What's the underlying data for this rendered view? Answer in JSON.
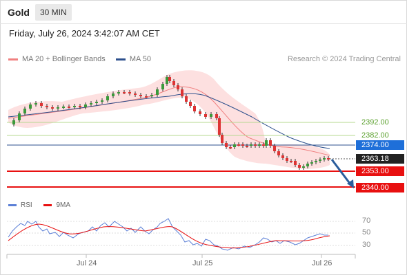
{
  "header": {
    "title": "Gold",
    "interval": "30 MIN"
  },
  "datetime": "Friday, July 26, 2024 3:42:07 AM CET",
  "legend": [
    {
      "label": "MA 20 + Bollinger Bands",
      "color": "#f08080"
    },
    {
      "label": "MA 50",
      "color": "#2c4f8c"
    }
  ],
  "credit": "Research © 2024 Trading Central",
  "levels": {
    "resistance_2": "2392.00",
    "resistance_1": "2382.00",
    "pivot": "2374.00",
    "last": "2363.18",
    "support_1": "2353.00",
    "support_2": "2340.00"
  },
  "colors": {
    "resistance": "#5aa02c",
    "pivot": "#1e6fd9",
    "support": "#e81010",
    "last": "#222222",
    "arrow": "#2a5d9c"
  },
  "rsi": {
    "legend": [
      {
        "label": "RSI",
        "color": "#5b7fd6"
      },
      {
        "label": "9MA",
        "color": "#e81010"
      }
    ],
    "axis": [
      "70",
      "50",
      "30"
    ]
  },
  "x_axis": [
    "Jul 24",
    "Jul 25",
    "Jul 26"
  ]
}
